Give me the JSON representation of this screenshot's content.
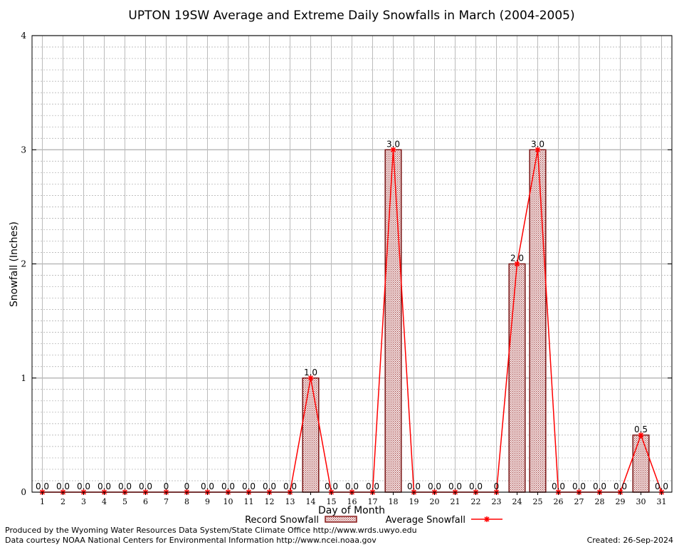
{
  "chart_data": {
    "type": "bar",
    "title": "UPTON 19SW Average and Extreme Daily Snowfalls in March (2004-2005)",
    "xlabel": "Day of Month",
    "ylabel": "Snowfall (Inches)",
    "ylim": [
      0,
      4
    ],
    "y_ticks": [
      "0",
      "1",
      "2",
      "3",
      "4"
    ],
    "y_minor_step": 0.1,
    "grid": true,
    "legend_position": "bottom",
    "categories": [
      "1",
      "2",
      "3",
      "4",
      "5",
      "6",
      "7",
      "8",
      "9",
      "10",
      "11",
      "12",
      "13",
      "14",
      "15",
      "16",
      "17",
      "18",
      "19",
      "20",
      "21",
      "22",
      "23",
      "24",
      "25",
      "26",
      "27",
      "28",
      "29",
      "30",
      "31"
    ],
    "series": [
      {
        "name": "Record Snowfall",
        "style": "bar",
        "color": "#8b1a1a",
        "values": [
          0,
          0,
          0,
          0,
          0,
          0,
          0,
          0,
          0,
          0,
          0,
          0,
          0,
          1.0,
          0,
          0,
          0,
          3.0,
          0,
          0,
          0,
          0,
          0,
          2.0,
          3.0,
          0,
          0,
          0,
          0,
          0.5,
          0
        ]
      },
      {
        "name": "Average Snowfall",
        "style": "line",
        "color": "#ff0000",
        "values": [
          0,
          0,
          0,
          0,
          0,
          0,
          0,
          0,
          0,
          0,
          0,
          0,
          0,
          1.0,
          0,
          0,
          0,
          3.0,
          0,
          0,
          0,
          0,
          0,
          2.0,
          3.0,
          0,
          0,
          0,
          0,
          0.5,
          0
        ]
      }
    ],
    "value_labels": [
      "0.0",
      "0.0",
      "0.0",
      "0.0",
      "0.0",
      "0.0",
      "0",
      "0",
      "0.0",
      "0.0",
      "0.0",
      "0.0",
      "0.0",
      "1.0",
      "0.0",
      "0.0",
      "0.0",
      "3.0",
      "0.0",
      "0.0",
      "0.0",
      "0.0",
      "0",
      "2.0",
      "3.0",
      "0.0",
      "0.0",
      "0.0",
      "0.0",
      "0.5",
      "0.0"
    ]
  },
  "footer": {
    "credit_line1": "Produced by the Wyoming Water Resources Data System/State Climate Office http://www.wrds.uwyo.edu",
    "credit_line2": "Data courtesy NOAA National Centers for Environmental Information http://www.ncei.noaa.gov",
    "created": "Created:  26-Sep-2024"
  }
}
